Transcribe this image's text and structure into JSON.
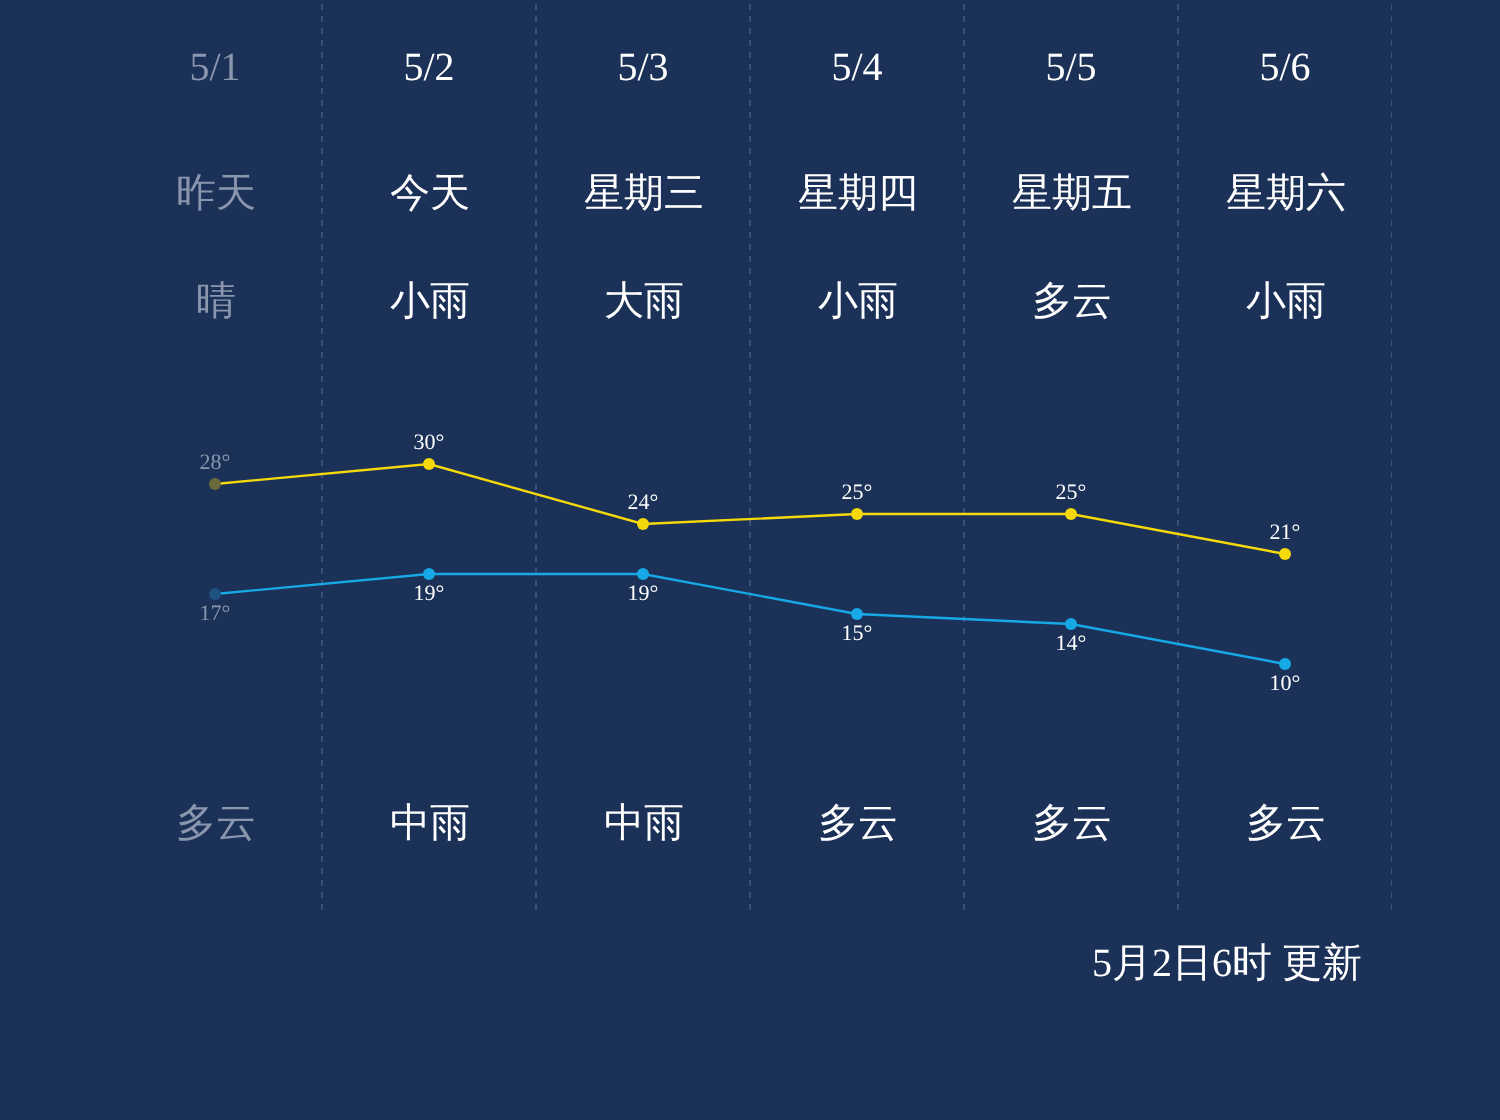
{
  "chart_data": {
    "type": "line",
    "categories": [
      "5/1",
      "5/2",
      "5/3",
      "5/4",
      "5/5",
      "5/6"
    ],
    "series": [
      {
        "color": "#f5d90a",
        "colors": [
          "#6b6a3c",
          "#f5d90a",
          "#f5d90a",
          "#f5d90a",
          "#f5d90a",
          "#f5d90a"
        ],
        "values": [
          28,
          30,
          24,
          25,
          25,
          21
        ],
        "value_labels": [
          "28°",
          "30°",
          "24°",
          "25°",
          "25°",
          "21°"
        ]
      },
      {
        "color": "#17a8e6",
        "colors": [
          "#1e5480",
          "#17a8e6",
          "#17a8e6",
          "#17a8e6",
          "#17a8e6",
          "#17a8e6"
        ],
        "values": [
          17,
          19,
          19,
          15,
          14,
          10
        ],
        "value_labels": [
          "17°",
          "19°",
          "19°",
          "15°",
          "14°",
          "10°"
        ]
      }
    ],
    "annotations": [
      "昨天",
      "今天",
      "星期三",
      "星期四",
      "星期五",
      "星期六",
      "晴",
      "小雨",
      "大雨",
      "小雨",
      "多云",
      "小雨",
      "多云",
      "中雨",
      "中雨",
      "多云",
      "多云",
      "多云",
      "5月2日6时 更新"
    ],
    "grid": "x",
    "marker": "circle",
    "line_style": "solid"
  }
}
